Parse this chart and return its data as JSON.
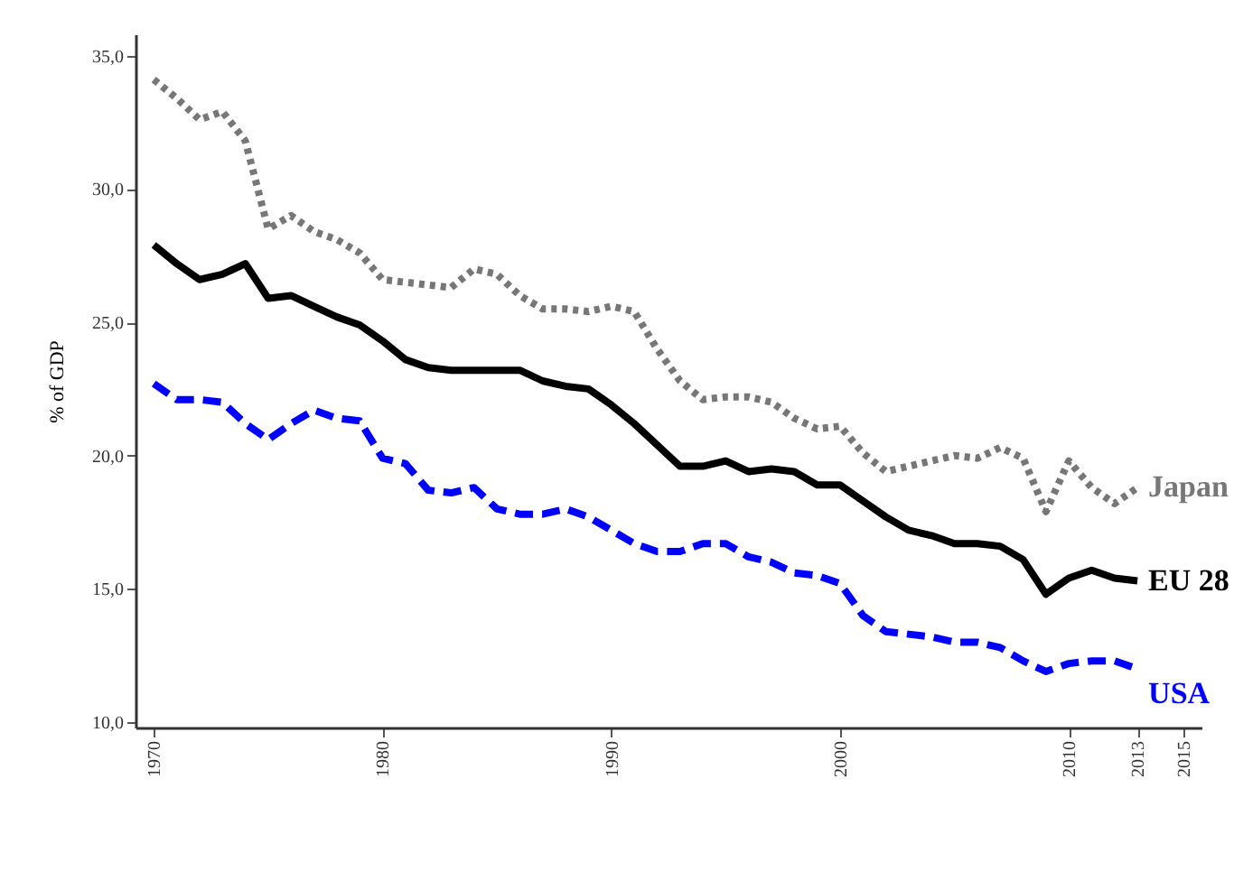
{
  "chart_data": {
    "type": "line",
    "ylabel": "% of GDP",
    "x": [
      1970,
      1971,
      1972,
      1973,
      1974,
      1975,
      1976,
      1977,
      1978,
      1979,
      1980,
      1981,
      1982,
      1983,
      1984,
      1985,
      1986,
      1987,
      1988,
      1989,
      1990,
      1991,
      1992,
      1993,
      1994,
      1995,
      1996,
      1997,
      1998,
      1999,
      2000,
      2001,
      2002,
      2003,
      2004,
      2005,
      2006,
      2007,
      2008,
      2009,
      2010,
      2011,
      2012,
      2013
    ],
    "series": [
      {
        "name": "Japan",
        "color": "#777777",
        "line_style": "dotted",
        "values": [
          34.1,
          33.4,
          32.6,
          32.9,
          31.8,
          28.5,
          29.0,
          28.4,
          28.1,
          27.6,
          26.6,
          26.5,
          26.4,
          26.3,
          27.0,
          26.8,
          26.0,
          25.5,
          25.5,
          25.4,
          25.6,
          25.4,
          24.0,
          22.8,
          22.1,
          22.2,
          22.2,
          22.0,
          21.4,
          21.0,
          21.1,
          20.1,
          19.4,
          19.6,
          19.8,
          20.0,
          19.9,
          20.3,
          19.9,
          17.9,
          19.8,
          18.8,
          18.2,
          18.8
        ]
      },
      {
        "name": "EU 28",
        "color": "#000000",
        "line_style": "solid",
        "values": [
          27.9,
          27.2,
          26.6,
          26.8,
          27.2,
          25.9,
          26.0,
          25.6,
          25.2,
          24.9,
          24.3,
          23.6,
          23.3,
          23.2,
          23.2,
          23.2,
          23.2,
          22.8,
          22.6,
          22.5,
          21.9,
          21.2,
          20.4,
          19.6,
          19.6,
          19.8,
          19.4,
          19.5,
          19.4,
          18.9,
          18.9,
          18.3,
          17.7,
          17.2,
          17.0,
          16.7,
          16.7,
          16.6,
          16.1,
          14.8,
          15.4,
          15.7,
          15.4,
          15.3
        ]
      },
      {
        "name": "USA",
        "color": "#0000ff",
        "line_style": "dashed",
        "values": [
          22.7,
          22.1,
          22.1,
          22.0,
          21.2,
          20.6,
          21.2,
          21.7,
          21.4,
          21.3,
          19.9,
          19.7,
          18.7,
          18.6,
          18.8,
          18.0,
          17.8,
          17.8,
          18.0,
          17.7,
          17.2,
          16.7,
          16.4,
          16.4,
          16.7,
          16.7,
          16.2,
          16.0,
          15.6,
          15.5,
          15.2,
          14.0,
          13.4,
          13.3,
          13.2,
          13.0,
          13.0,
          12.8,
          12.3,
          11.9,
          12.2,
          12.3,
          12.3,
          12.0
        ]
      }
    ],
    "xlim": [
      1969.2,
      2015.8
    ],
    "xticks": [
      1970,
      1980,
      1990,
      2000,
      2010,
      2013,
      2015
    ],
    "ylim": [
      9.8,
      35.8
    ],
    "yticks": [
      {
        "value": 10,
        "label": "10,0"
      },
      {
        "value": 15,
        "label": "15,0"
      },
      {
        "value": 20,
        "label": "20,0"
      },
      {
        "value": 25,
        "label": "25,0"
      },
      {
        "value": 30,
        "label": "30,0"
      },
      {
        "value": 35,
        "label": "35,0"
      }
    ],
    "grid": false,
    "legend": false
  }
}
